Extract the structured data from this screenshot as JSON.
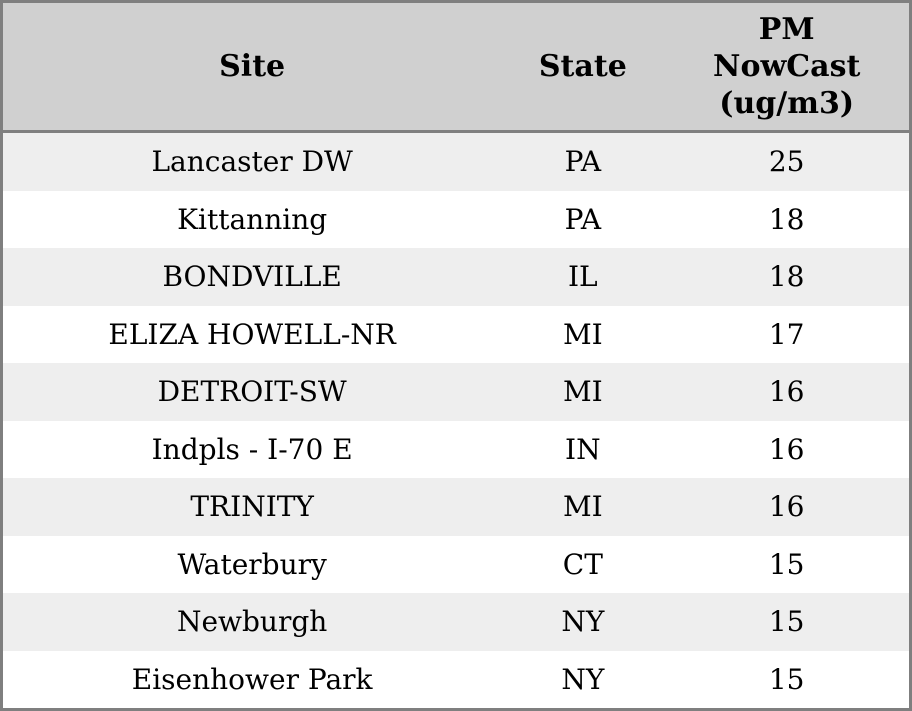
{
  "table": {
    "columns": [
      {
        "label": "Site"
      },
      {
        "label": "State"
      },
      {
        "label": "PM NowCast (ug/m3)",
        "lines": [
          "PM",
          "NowCast",
          "(ug/m3)"
        ]
      }
    ],
    "rows": [
      {
        "site": "Lancaster DW",
        "state": "PA",
        "pm": "25"
      },
      {
        "site": "Kittanning",
        "state": "PA",
        "pm": "18"
      },
      {
        "site": "BONDVILLE",
        "state": "IL",
        "pm": "18"
      },
      {
        "site": "ELIZA HOWELL-NR",
        "state": "MI",
        "pm": "17"
      },
      {
        "site": "DETROIT-SW",
        "state": "MI",
        "pm": "16"
      },
      {
        "site": "Indpls - I-70 E",
        "state": "IN",
        "pm": "16"
      },
      {
        "site": "TRINITY",
        "state": "MI",
        "pm": "16"
      },
      {
        "site": "Waterbury",
        "state": "CT",
        "pm": "15"
      },
      {
        "site": "Newburgh",
        "state": "NY",
        "pm": "15"
      },
      {
        "site": "Eisenhower Park",
        "state": "NY",
        "pm": "15"
      }
    ]
  },
  "colors": {
    "header_bg": "#d0d0d0",
    "border": "#7f7f7f",
    "row_stripe": "#eeeeee",
    "row_white": "#ffffff",
    "text": "#000000"
  },
  "chart_data": {
    "type": "table",
    "title": "",
    "columns": [
      "Site",
      "State",
      "PM NowCast (ug/m3)"
    ],
    "rows": [
      [
        "Lancaster DW",
        "PA",
        25
      ],
      [
        "Kittanning",
        "PA",
        18
      ],
      [
        "BONDVILLE",
        "IL",
        18
      ],
      [
        "ELIZA HOWELL-NR",
        "MI",
        17
      ],
      [
        "DETROIT-SW",
        "MI",
        16
      ],
      [
        "Indpls - I-70 E",
        "IN",
        16
      ],
      [
        "TRINITY",
        "MI",
        16
      ],
      [
        "Waterbury",
        "CT",
        15
      ],
      [
        "Newburgh",
        "NY",
        15
      ],
      [
        "Eisenhower Park",
        "NY",
        15
      ]
    ],
    "layout": {
      "striped": true,
      "header_bg": "#d0d0d0",
      "stripe_bg": "#eeeeee"
    }
  }
}
